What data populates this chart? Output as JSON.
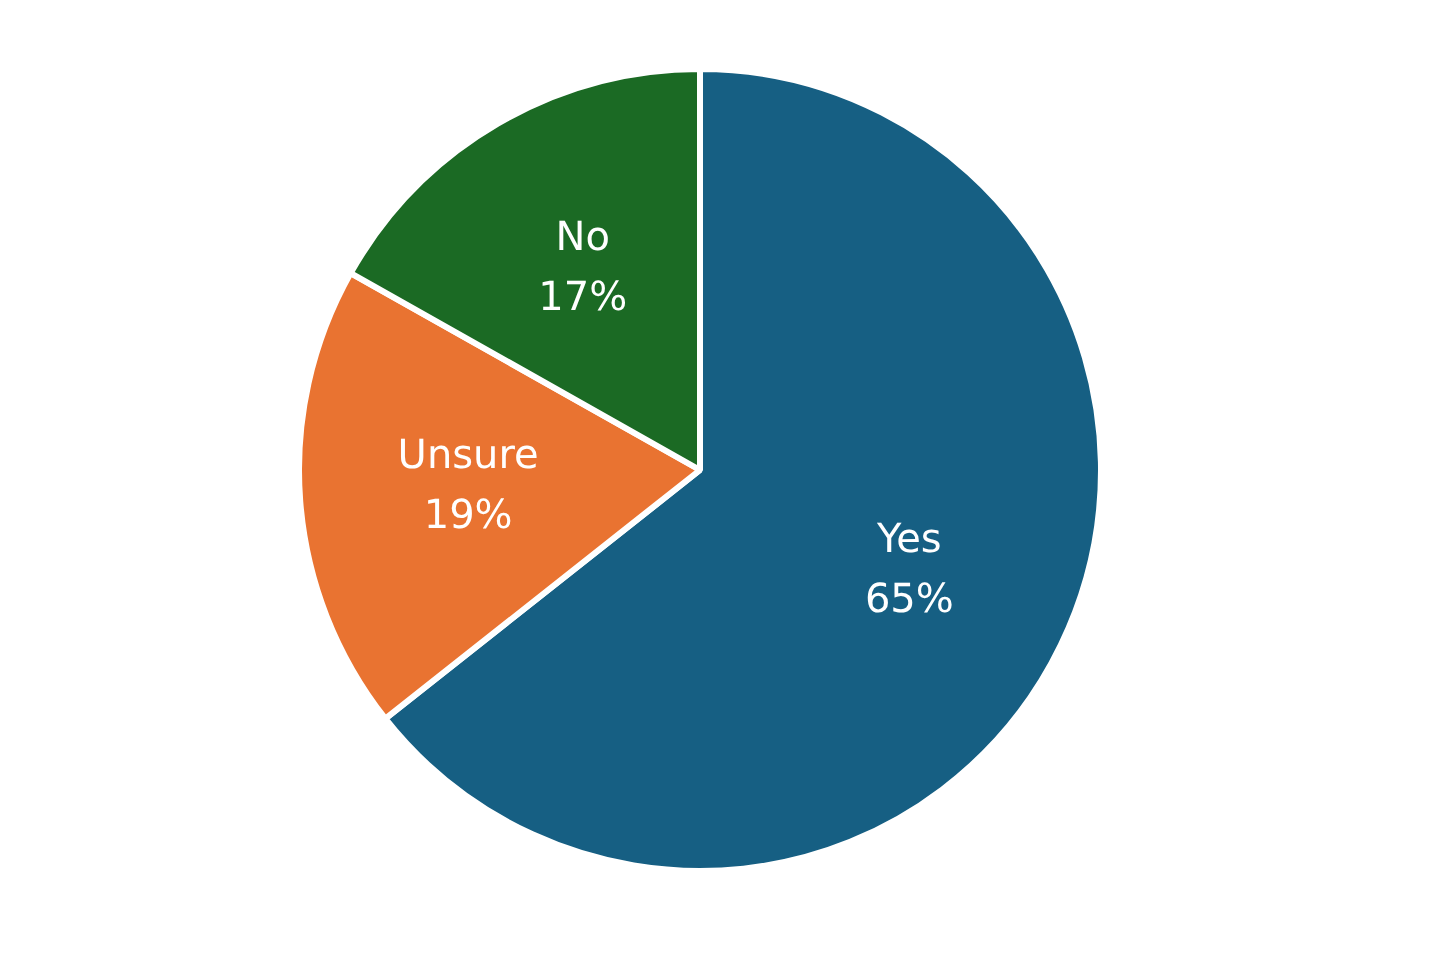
{
  "chart_data": {
    "type": "pie",
    "categories": [
      "Yes",
      "Unsure",
      "No"
    ],
    "values": [
      65,
      19,
      17
    ],
    "colors": [
      "#165f83",
      "#e97331",
      "#1b6a24"
    ],
    "value_labels": [
      "65%",
      "19%",
      "17%"
    ],
    "legend": false
  }
}
